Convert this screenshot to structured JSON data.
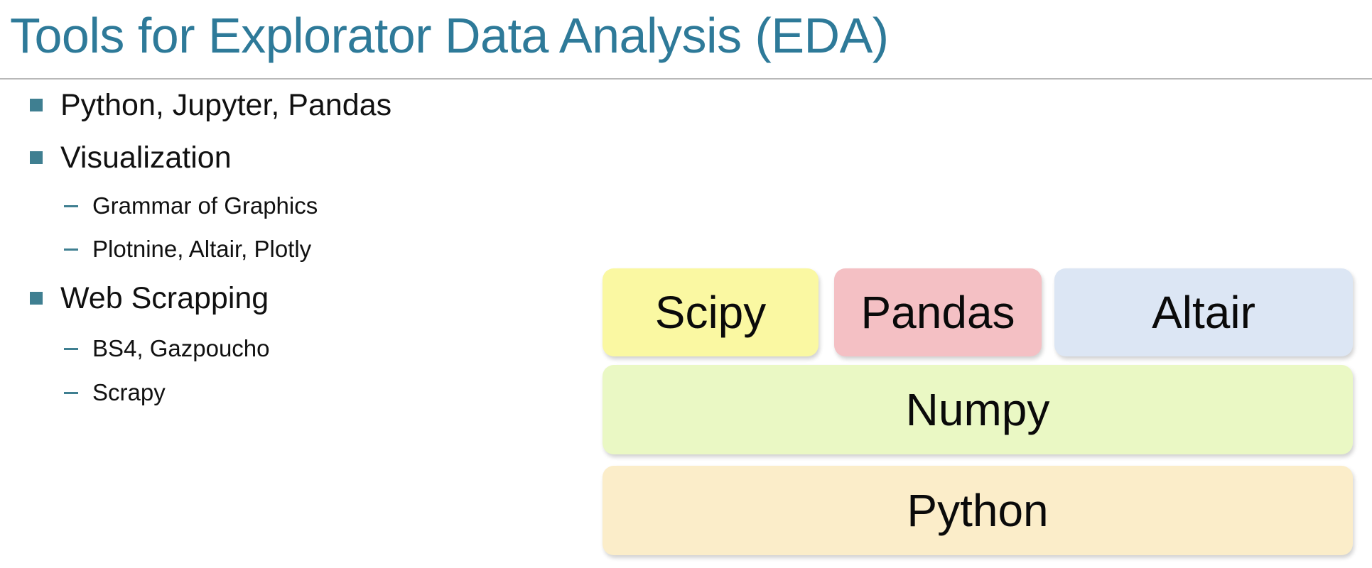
{
  "slide": {
    "title": "Tools for Explorator Data Analysis (EDA)",
    "bullets": {
      "b1": "Python, Jupyter, Pandas",
      "b2": "Visualization",
      "b2_1": "Grammar of Graphics",
      "b2_2": "Plotnine, Altair, Plotly",
      "b3": "Web Scrapping",
      "b3_1": "BS4, Gazpoucho",
      "b3_2": "Scrapy"
    },
    "stack": {
      "scipy": "Scipy",
      "pandas": "Pandas",
      "altair": "Altair",
      "numpy": "Numpy",
      "python": "Python"
    }
  },
  "colors": {
    "title": "#2e7a99",
    "bullet_marker": "#3f7f91",
    "scipy_box": "#faf8a2",
    "pandas_box": "#f4c0c4",
    "altair_box": "#dce6f4",
    "numpy_box": "#eaf8c4",
    "python_box": "#fbedc9"
  }
}
